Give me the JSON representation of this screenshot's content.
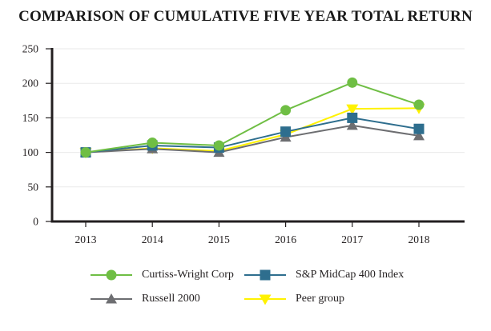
{
  "chart_data": {
    "type": "line",
    "title": "COMPARISON OF CUMULATIVE FIVE YEAR TOTAL RETURN",
    "categories": [
      "2013",
      "2014",
      "2015",
      "2016",
      "2017",
      "2018"
    ],
    "series": [
      {
        "name": "Curtiss-Wright Corp",
        "marker": "circle",
        "color": "#6fbe44",
        "values": [
          100,
          114,
          110,
          161,
          201,
          169
        ]
      },
      {
        "name": "S&P MidCap 400 Index",
        "marker": "square",
        "color": "#2e6e8e",
        "values": [
          100,
          110,
          107,
          130,
          150,
          134
        ]
      },
      {
        "name": "Russell 2000",
        "marker": "triangle-up",
        "color": "#6d6e71",
        "values": [
          100,
          105,
          100,
          122,
          139,
          124
        ]
      },
      {
        "name": "Peer group",
        "marker": "triangle-down",
        "color": "#fff200",
        "values": [
          100,
          106,
          102,
          126,
          163,
          164
        ]
      }
    ],
    "ylim": [
      0,
      250
    ],
    "yticks": [
      0,
      50,
      100,
      150,
      200,
      250
    ],
    "xlabel": "",
    "ylabel": "",
    "grid": "horizontal",
    "legend_position": "bottom",
    "colors": {
      "axis": "#231f20",
      "gridline": "#eaeaea",
      "text": "#231f20",
      "background": "#ffffff"
    }
  }
}
